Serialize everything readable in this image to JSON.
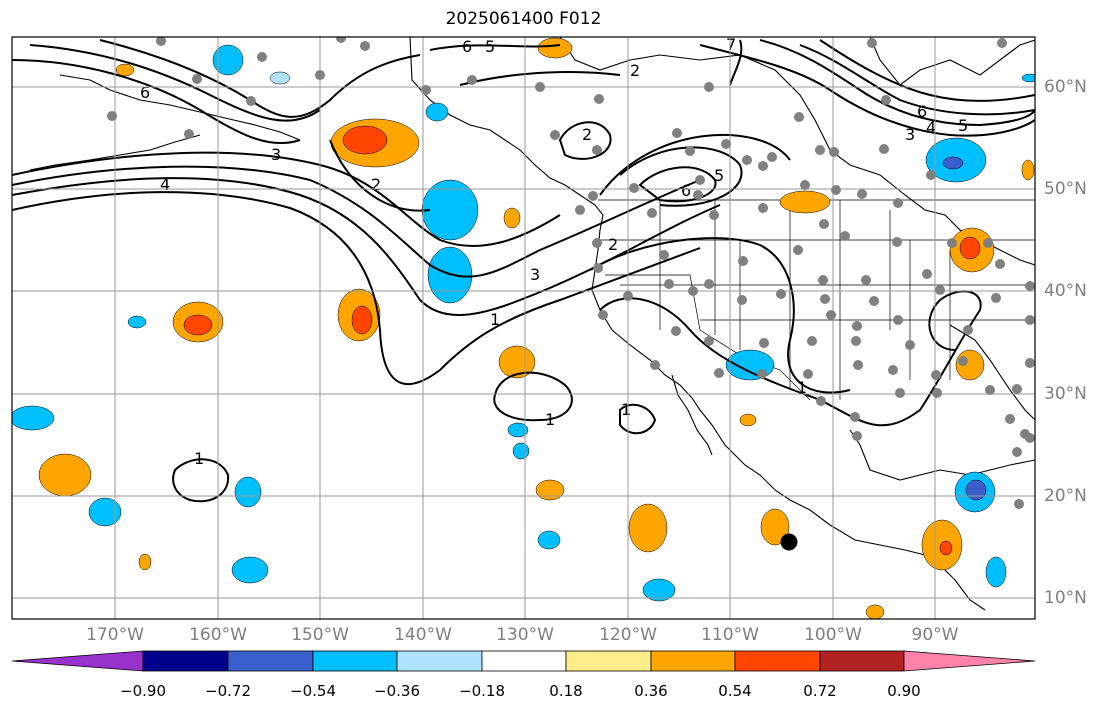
{
  "title": "2025061400 F012",
  "longitude_labels": [
    "170°W",
    "160°W",
    "150°W",
    "140°W",
    "130°W",
    "120°W",
    "110°W",
    "100°W",
    "90°W"
  ],
  "latitude_labels": [
    "60°N",
    "50°N",
    "40°N",
    "30°N",
    "20°N",
    "10°N"
  ],
  "colorbar": {
    "ticks": [
      "−0.90",
      "−0.72",
      "−0.54",
      "−0.36",
      "−0.18",
      "0.18",
      "0.36",
      "0.54",
      "0.72",
      "0.90"
    ],
    "colors": [
      "#9932cc",
      "#00008b",
      "#3a5fcd",
      "#00bfff",
      "#b0e2ff",
      "#ffffff",
      "#ffec8b",
      "#ffa500",
      "#ff4500",
      "#b22222",
      "#ff82ab"
    ]
  },
  "contour_labels": [
    "6",
    "5",
    "2",
    "7",
    "6",
    "2",
    "6",
    "5",
    "2",
    "4",
    "3",
    "6",
    "5",
    "3",
    "4",
    "3",
    "2",
    "1",
    "1",
    "1",
    "1",
    "1"
  ],
  "marker": "storm-center-marker"
}
